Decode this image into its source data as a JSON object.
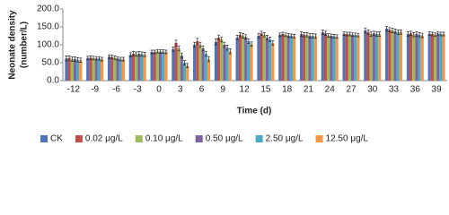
{
  "chart_data": {
    "type": "bar",
    "y_label": [
      "Neonate density",
      "(number/L)"
    ],
    "x_label": "Time (d)",
    "categories": [
      "-12",
      "-9",
      "-6",
      "-3",
      "0",
      "3",
      "6",
      "9",
      "12",
      "15",
      "18",
      "21",
      "24",
      "27",
      "30",
      "33",
      "36",
      "39"
    ],
    "ylim": [
      0,
      200
    ],
    "yticks": [
      {
        "value": 0,
        "label": "0.0"
      },
      {
        "value": 50,
        "label": "50.0"
      },
      {
        "value": 100,
        "label": "100.0"
      },
      {
        "value": 150,
        "label": "150.0"
      },
      {
        "value": 200,
        "label": "200.0"
      }
    ],
    "grid": false,
    "legend": "bottom",
    "series": [
      {
        "name": "CK",
        "color": "#4f72b8",
        "values": [
          62,
          63,
          67,
          72,
          80,
          88,
          100,
          108,
          120,
          125,
          128,
          130,
          135,
          131,
          140,
          145,
          130,
          131
        ],
        "errors": [
          7,
          5,
          5,
          6,
          5,
          6,
          7,
          8,
          6,
          7,
          5,
          6,
          6,
          5,
          7,
          6,
          6,
          5
        ]
      },
      {
        "name": "0.02 μg/L",
        "color": "#c0504d",
        "values": [
          63,
          64,
          66,
          75,
          80,
          105,
          110,
          120,
          128,
          132,
          130,
          128,
          132,
          130,
          135,
          142,
          132,
          130
        ],
        "errors": [
          6,
          5,
          5,
          6,
          5,
          8,
          8,
          7,
          6,
          6,
          5,
          6,
          6,
          5,
          6,
          6,
          6,
          5
        ]
      },
      {
        "name": "0.10 μg/L",
        "color": "#9bbb59",
        "values": [
          60,
          63,
          64,
          74,
          82,
          90,
          100,
          115,
          125,
          128,
          128,
          128,
          126,
          130,
          130,
          140,
          128,
          128
        ],
        "errors": [
          6,
          5,
          5,
          6,
          5,
          7,
          7,
          7,
          6,
          6,
          5,
          6,
          5,
          5,
          6,
          6,
          6,
          5
        ]
      },
      {
        "name": "0.50 μg/L",
        "color": "#8064a2",
        "values": [
          60,
          62,
          62,
          75,
          81,
          70,
          90,
          100,
          122,
          120,
          126,
          125,
          125,
          128,
          132,
          138,
          130,
          132
        ],
        "errors": [
          6,
          5,
          5,
          6,
          5,
          7,
          7,
          7,
          6,
          6,
          5,
          6,
          5,
          5,
          6,
          6,
          6,
          5
        ]
      },
      {
        "name": "2.50 μg/L",
        "color": "#4bacc6",
        "values": [
          58,
          62,
          60,
          74,
          81,
          50,
          75,
          92,
          110,
          115,
          125,
          125,
          124,
          128,
          130,
          135,
          128,
          130
        ],
        "errors": [
          6,
          5,
          5,
          6,
          5,
          6,
          7,
          7,
          6,
          6,
          5,
          6,
          5,
          5,
          6,
          6,
          6,
          5
        ]
      },
      {
        "name": "12.50 μg/L",
        "color": "#f79646",
        "values": [
          57,
          60,
          60,
          73,
          80,
          42,
          60,
          82,
          102,
          105,
          124,
          124,
          123,
          127,
          130,
          136,
          126,
          130
        ],
        "errors": [
          6,
          5,
          5,
          6,
          5,
          6,
          7,
          7,
          6,
          6,
          5,
          6,
          5,
          5,
          6,
          6,
          6,
          5
        ]
      }
    ]
  }
}
